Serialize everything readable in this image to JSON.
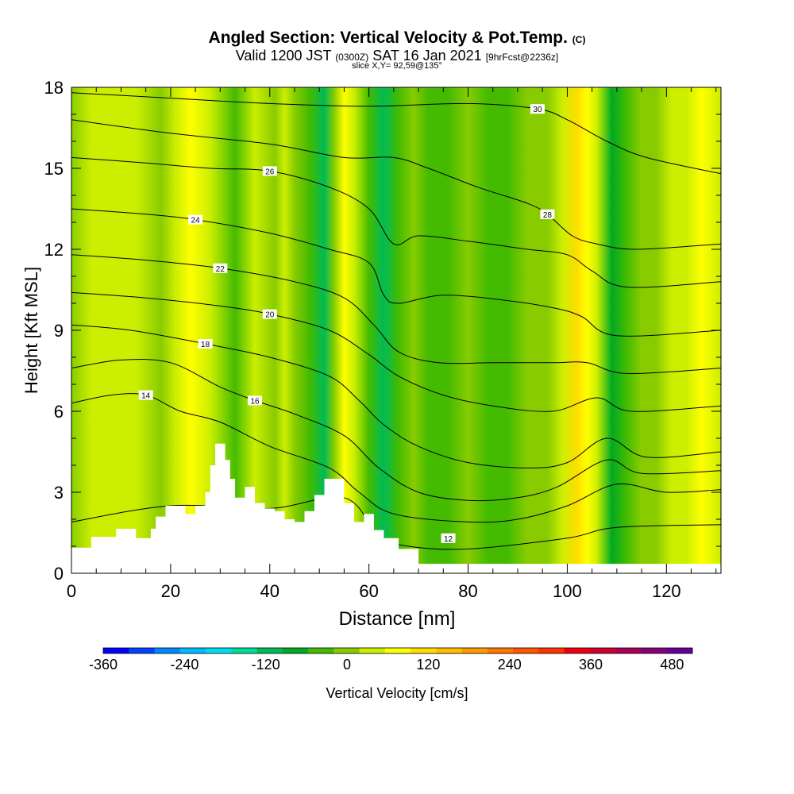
{
  "header": {
    "title_main": "Angled Section: Vertical Velocity & Pot.Temp.",
    "title_unit": "(C)",
    "valid_prefix": "Valid 1200 JST",
    "valid_z": "(0300Z)",
    "valid_date": "SAT 16 Jan 2021",
    "forecast": "[9hrFcst@2236z]",
    "slice": "slice X,Y= 92,59@135°"
  },
  "chart_data": {
    "type": "heatmap",
    "xlabel": "Distance [nm]",
    "ylabel": "Height [Kft MSL]",
    "xlim": [
      0,
      131
    ],
    "ylim": [
      0,
      18
    ],
    "x_ticks": [
      0,
      20,
      40,
      60,
      80,
      100,
      120
    ],
    "y_ticks": [
      0,
      3,
      6,
      9,
      12,
      15,
      18
    ],
    "colorbar": {
      "label": "Vertical Velocity [cm/s]",
      "range": [
        -360,
        510
      ],
      "tick_labels": [
        -360,
        -240,
        -120,
        0,
        120,
        240,
        360,
        480
      ],
      "colors": [
        "#0000ff",
        "#0044ff",
        "#0088ff",
        "#00bbff",
        "#00ddee",
        "#00dd99",
        "#00bb55",
        "#00aa22",
        "#44bb00",
        "#88cc00",
        "#ccee00",
        "#ffff00",
        "#ffdd00",
        "#ffbb00",
        "#ff9900",
        "#ff7700",
        "#ff5500",
        "#ff3300",
        "#ee0011",
        "#cc0033",
        "#aa0055",
        "#880077",
        "#660099"
      ]
    },
    "velocity_bands": [
      {
        "x": 0,
        "v": 15
      },
      {
        "x": 4,
        "v": 25
      },
      {
        "x": 9,
        "v": 30
      },
      {
        "x": 13,
        "v": 25
      },
      {
        "x": 18,
        "v": -15
      },
      {
        "x": 21,
        "v": 20
      },
      {
        "x": 24,
        "v": 65
      },
      {
        "x": 28,
        "v": 35
      },
      {
        "x": 33,
        "v": -20
      },
      {
        "x": 37,
        "v": 20
      },
      {
        "x": 41,
        "v": -10
      },
      {
        "x": 43,
        "v": 35
      },
      {
        "x": 45,
        "v": 0
      },
      {
        "x": 48,
        "v": -40
      },
      {
        "x": 51,
        "v": -120
      },
      {
        "x": 53,
        "v": 10
      },
      {
        "x": 55,
        "v": 80
      },
      {
        "x": 57,
        "v": 25
      },
      {
        "x": 60,
        "v": -50
      },
      {
        "x": 63,
        "v": -120
      },
      {
        "x": 66,
        "v": -40
      },
      {
        "x": 69,
        "v": 0
      },
      {
        "x": 72,
        "v": -30
      },
      {
        "x": 76,
        "v": -20
      },
      {
        "x": 80,
        "v": 0
      },
      {
        "x": 84,
        "v": -30
      },
      {
        "x": 88,
        "v": -30
      },
      {
        "x": 92,
        "v": -10
      },
      {
        "x": 96,
        "v": 5
      },
      {
        "x": 99,
        "v": 30
      },
      {
        "x": 102,
        "v": 120
      },
      {
        "x": 104,
        "v": 80
      },
      {
        "x": 106,
        "v": 20
      },
      {
        "x": 109,
        "v": -60
      },
      {
        "x": 112,
        "v": -20
      },
      {
        "x": 115,
        "v": 10
      },
      {
        "x": 118,
        "v": 15
      },
      {
        "x": 121,
        "v": 25
      },
      {
        "x": 124,
        "v": 45
      },
      {
        "x": 127,
        "v": 60
      },
      {
        "x": 131,
        "v": 50
      }
    ],
    "terrain_profile": [
      {
        "x": 0,
        "h": 0.95
      },
      {
        "x": 4,
        "h": 1.35
      },
      {
        "x": 9,
        "h": 1.65
      },
      {
        "x": 13,
        "h": 1.3
      },
      {
        "x": 16,
        "h": 1.65
      },
      {
        "x": 17,
        "h": 2.1
      },
      {
        "x": 19,
        "h": 2.5
      },
      {
        "x": 21,
        "h": 2.5
      },
      {
        "x": 23,
        "h": 2.2
      },
      {
        "x": 25,
        "h": 2.5
      },
      {
        "x": 27,
        "h": 3.0
      },
      {
        "x": 28,
        "h": 4.0
      },
      {
        "x": 29,
        "h": 4.8
      },
      {
        "x": 31,
        "h": 4.2
      },
      {
        "x": 32,
        "h": 3.5
      },
      {
        "x": 33,
        "h": 2.8
      },
      {
        "x": 35,
        "h": 3.2
      },
      {
        "x": 37,
        "h": 2.6
      },
      {
        "x": 39,
        "h": 2.4
      },
      {
        "x": 41,
        "h": 2.3
      },
      {
        "x": 43,
        "h": 2.0
      },
      {
        "x": 45,
        "h": 1.9
      },
      {
        "x": 47,
        "h": 2.3
      },
      {
        "x": 49,
        "h": 2.9
      },
      {
        "x": 51,
        "h": 3.5
      },
      {
        "x": 53,
        "h": 3.5
      },
      {
        "x": 55,
        "h": 2.6
      },
      {
        "x": 57,
        "h": 1.9
      },
      {
        "x": 59,
        "h": 2.2
      },
      {
        "x": 61,
        "h": 1.6
      },
      {
        "x": 63,
        "h": 1.3
      },
      {
        "x": 66,
        "h": 0.9
      },
      {
        "x": 70,
        "h": 0.35
      },
      {
        "x": 131,
        "h": 0.35
      }
    ],
    "isentropes": [
      {
        "label": "12",
        "label_at": [
          76,
          1.3
        ],
        "points": [
          [
            0,
            1.9
          ],
          [
            20,
            2.5
          ],
          [
            40,
            2.4
          ],
          [
            55,
            2.8
          ],
          [
            62,
            1.4
          ],
          [
            68,
            1.0
          ],
          [
            80,
            0.9
          ],
          [
            100,
            1.3
          ],
          [
            110,
            1.7
          ],
          [
            131,
            1.8
          ]
        ]
      },
      {
        "label": "14",
        "label_at": [
          15,
          6.6
        ],
        "points": [
          [
            0,
            6.3
          ],
          [
            8,
            6.6
          ],
          [
            15,
            6.6
          ],
          [
            22,
            6.0
          ],
          [
            30,
            5.6
          ],
          [
            40,
            4.7
          ],
          [
            52,
            3.9
          ],
          [
            58,
            3.0
          ],
          [
            65,
            2.2
          ],
          [
            80,
            1.9
          ],
          [
            90,
            2.0
          ],
          [
            100,
            2.5
          ],
          [
            110,
            3.3
          ],
          [
            120,
            3.0
          ],
          [
            131,
            3.1
          ]
        ]
      },
      {
        "label": "16",
        "label_at": [
          37,
          6.4
        ],
        "points": [
          [
            0,
            7.6
          ],
          [
            10,
            7.9
          ],
          [
            20,
            7.8
          ],
          [
            30,
            6.9
          ],
          [
            37,
            6.4
          ],
          [
            45,
            5.9
          ],
          [
            55,
            5.1
          ],
          [
            62,
            3.9
          ],
          [
            70,
            3.0
          ],
          [
            80,
            2.7
          ],
          [
            90,
            2.8
          ],
          [
            98,
            3.2
          ],
          [
            108,
            4.2
          ],
          [
            115,
            3.7
          ],
          [
            131,
            3.8
          ]
        ]
      },
      {
        "label": "18",
        "label_at": [
          27,
          8.5
        ],
        "points": [
          [
            0,
            9.2
          ],
          [
            12,
            9.0
          ],
          [
            27,
            8.5
          ],
          [
            40,
            8.0
          ],
          [
            52,
            7.3
          ],
          [
            58,
            6.4
          ],
          [
            63,
            5.5
          ],
          [
            70,
            4.7
          ],
          [
            80,
            4.1
          ],
          [
            92,
            3.9
          ],
          [
            100,
            4.1
          ],
          [
            108,
            5.0
          ],
          [
            116,
            4.3
          ],
          [
            131,
            4.5
          ]
        ]
      },
      {
        "label": "20",
        "label_at": [
          40,
          9.6
        ],
        "points": [
          [
            0,
            10.4
          ],
          [
            15,
            10.2
          ],
          [
            30,
            9.9
          ],
          [
            40,
            9.6
          ],
          [
            52,
            9.0
          ],
          [
            60,
            8.1
          ],
          [
            66,
            7.3
          ],
          [
            75,
            6.6
          ],
          [
            85,
            6.2
          ],
          [
            97,
            6.0
          ],
          [
            106,
            6.5
          ],
          [
            113,
            6.0
          ],
          [
            131,
            6.2
          ]
        ]
      },
      {
        "label": "22",
        "label_at": [
          30,
          11.3
        ],
        "points": [
          [
            0,
            11.8
          ],
          [
            15,
            11.6
          ],
          [
            30,
            11.3
          ],
          [
            45,
            10.8
          ],
          [
            55,
            10.2
          ],
          [
            61,
            9.2
          ],
          [
            66,
            8.2
          ],
          [
            74,
            7.8
          ],
          [
            85,
            7.8
          ],
          [
            97,
            7.8
          ],
          [
            104,
            7.8
          ],
          [
            112,
            7.4
          ],
          [
            131,
            7.6
          ]
        ]
      },
      {
        "label": "24",
        "label_at": [
          25,
          13.1
        ],
        "points": [
          [
            0,
            13.5
          ],
          [
            15,
            13.3
          ],
          [
            25,
            13.1
          ],
          [
            40,
            12.6
          ],
          [
            52,
            12.0
          ],
          [
            60,
            11.5
          ],
          [
            63,
            10.3
          ],
          [
            66,
            10.0
          ],
          [
            75,
            10.3
          ],
          [
            88,
            10.1
          ],
          [
            98,
            9.8
          ],
          [
            103,
            9.5
          ],
          [
            110,
            8.8
          ],
          [
            131,
            9.0
          ]
        ]
      },
      {
        "label": "26",
        "label_at": [
          40,
          14.9
        ],
        "points": [
          [
            0,
            15.4
          ],
          [
            15,
            15.2
          ],
          [
            28,
            15.0
          ],
          [
            40,
            14.9
          ],
          [
            52,
            14.3
          ],
          [
            60,
            13.5
          ],
          [
            65,
            12.2
          ],
          [
            70,
            12.5
          ],
          [
            80,
            12.3
          ],
          [
            92,
            12.0
          ],
          [
            100,
            11.8
          ],
          [
            105,
            11.2
          ],
          [
            112,
            10.6
          ],
          [
            131,
            10.8
          ]
        ]
      },
      {
        "label": "28",
        "label_at": [
          96,
          13.3
        ],
        "points": [
          [
            0,
            16.8
          ],
          [
            20,
            16.3
          ],
          [
            40,
            15.9
          ],
          [
            55,
            15.4
          ],
          [
            65,
            15.4
          ],
          [
            72,
            15.0
          ],
          [
            82,
            14.3
          ],
          [
            92,
            13.7
          ],
          [
            96,
            13.3
          ],
          [
            101,
            12.5
          ],
          [
            106,
            12.2
          ],
          [
            114,
            12.0
          ],
          [
            131,
            12.2
          ]
        ]
      },
      {
        "label": "30",
        "label_at": [
          94,
          17.2
        ],
        "points": [
          [
            0,
            17.8
          ],
          [
            20,
            17.6
          ],
          [
            40,
            17.4
          ],
          [
            60,
            17.3
          ],
          [
            80,
            17.4
          ],
          [
            94,
            17.2
          ],
          [
            100,
            16.8
          ],
          [
            108,
            16.0
          ],
          [
            116,
            15.4
          ],
          [
            131,
            14.8
          ]
        ]
      }
    ]
  }
}
